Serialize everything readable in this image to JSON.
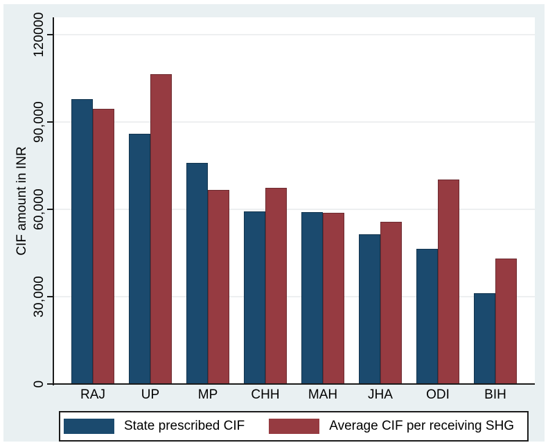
{
  "figure": {
    "region_background": "#e9f0f2",
    "plot_background": "#ffffff",
    "axis_color": "#1a1a1a",
    "gridline_color": "#edeff0"
  },
  "chart_data": {
    "type": "bar",
    "title": "",
    "xlabel": "",
    "ylabel": "CIF amount in INR",
    "categories": [
      "RAJ",
      "UP",
      "MP",
      "CHH",
      "MAH",
      "JHA",
      "ODI",
      "BIH"
    ],
    "series": [
      {
        "name": "State prescribed CIF",
        "color": "#1b4a6e",
        "values": [
          98000,
          86000,
          76000,
          59200,
          59000,
          51500,
          46400,
          31300
        ]
      },
      {
        "name": "Average CIF per receiving SHG",
        "color": "#963b41",
        "values": [
          94500,
          106500,
          66700,
          67300,
          58800,
          55700,
          70300,
          43000
        ]
      }
    ],
    "ylim": [
      0,
      126000
    ],
    "yticks": [
      {
        "value": 0,
        "label": "0"
      },
      {
        "value": 30000,
        "label": "30,000"
      },
      {
        "value": 60000,
        "label": "60,000"
      },
      {
        "value": 90000,
        "label": "90,000"
      },
      {
        "value": 120000,
        "label": "120000"
      }
    ],
    "grid": true,
    "legend_position": "bottom"
  }
}
